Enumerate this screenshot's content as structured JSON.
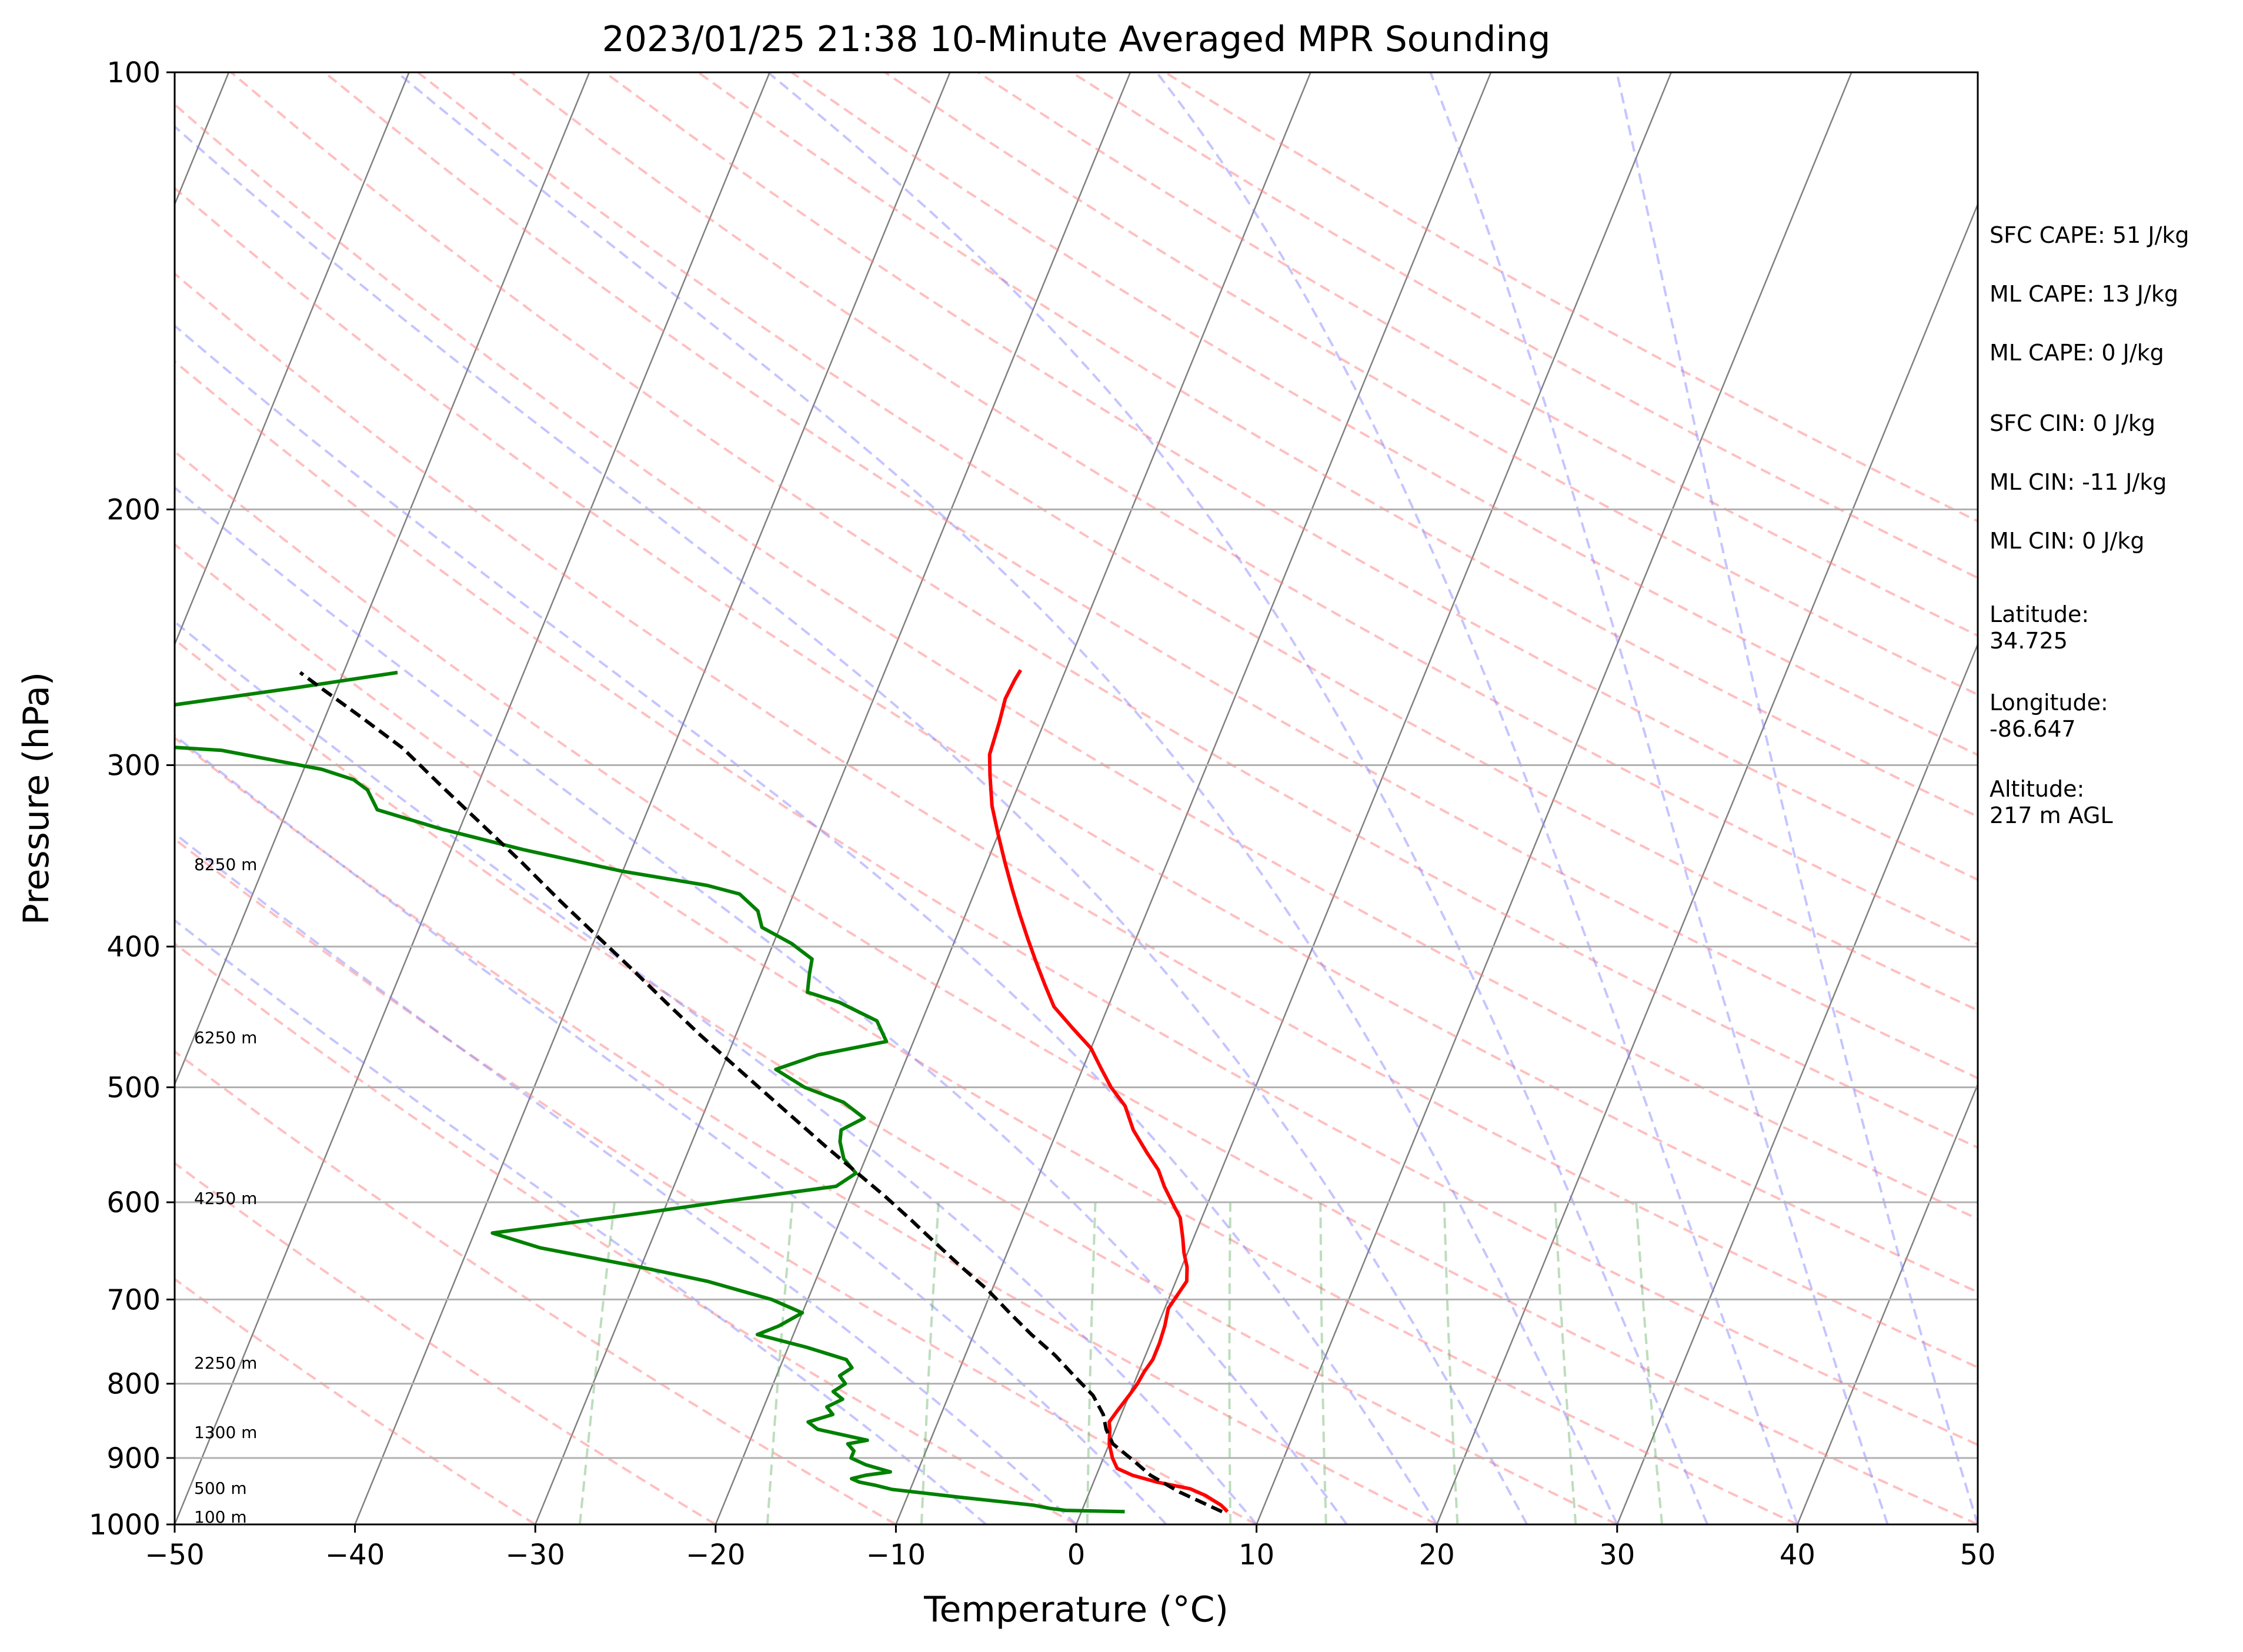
{
  "chart_data": {
    "type": "line",
    "title": "2023/01/25 21:38 10-Minute Averaged MPR Sounding",
    "xlabel": "Temperature (°C)",
    "ylabel": "Pressure (hPa)",
    "xlim": [
      -50,
      50
    ],
    "ylim_pressure_hpa": [
      1000,
      100
    ],
    "y_scale": "log",
    "x_ticks": [
      "−50",
      "−40",
      "−30",
      "−20",
      "−10",
      "0",
      "10",
      "20",
      "30",
      "40",
      "50"
    ],
    "y_ticks": [
      "100",
      "200",
      "300",
      "400",
      "500",
      "600",
      "700",
      "800",
      "900",
      "1000"
    ],
    "grid": true,
    "isotherm_skew": true,
    "series": [
      {
        "role": "temperature",
        "color": "#ff0000",
        "points": [
          [
            8.1,
            980
          ],
          [
            7.6,
            970
          ],
          [
            6.5,
            955
          ],
          [
            5.5,
            945
          ],
          [
            3.5,
            935
          ],
          [
            2.0,
            925
          ],
          [
            1.0,
            915
          ],
          [
            0.5,
            900
          ],
          [
            0.0,
            880
          ],
          [
            -0.3,
            860
          ],
          [
            -0.5,
            850
          ],
          [
            -0.3,
            835
          ],
          [
            0.0,
            815
          ],
          [
            0.2,
            800
          ],
          [
            0.3,
            785
          ],
          [
            0.5,
            770
          ],
          [
            0.5,
            750
          ],
          [
            0.4,
            730
          ],
          [
            0.2,
            710
          ],
          [
            0.4,
            695
          ],
          [
            0.6,
            680
          ],
          [
            0.3,
            665
          ],
          [
            -0.2,
            650
          ],
          [
            -0.6,
            635
          ],
          [
            -1.2,
            615
          ],
          [
            -2.0,
            600
          ],
          [
            -2.8,
            585
          ],
          [
            -3.5,
            570
          ],
          [
            -4.5,
            555
          ],
          [
            -5.8,
            535
          ],
          [
            -6.8,
            515
          ],
          [
            -8.0,
            500
          ],
          [
            -9.0,
            485
          ],
          [
            -10.0,
            470
          ],
          [
            -11.5,
            455
          ],
          [
            -13.0,
            440
          ],
          [
            -14.0,
            425
          ],
          [
            -15.0,
            410
          ],
          [
            -16.0,
            395
          ],
          [
            -17.0,
            380
          ],
          [
            -18.0,
            365
          ],
          [
            -19.0,
            350
          ],
          [
            -20.0,
            335
          ],
          [
            -21.0,
            320
          ],
          [
            -21.8,
            305
          ],
          [
            -22.3,
            295
          ],
          [
            -22.5,
            280
          ],
          [
            -22.7,
            270
          ],
          [
            -22.6,
            262
          ],
          [
            -22.5,
            258
          ]
        ]
      },
      {
        "role": "dewpoint",
        "color": "#008000",
        "points": [
          [
            2.4,
            980
          ],
          [
            -0.9,
            978
          ],
          [
            -1.8,
            975
          ],
          [
            -2.8,
            970
          ],
          [
            -4.5,
            965
          ],
          [
            -7.0,
            958
          ],
          [
            -9.0,
            952
          ],
          [
            -11.0,
            946
          ],
          [
            -12.0,
            940
          ],
          [
            -13.0,
            935
          ],
          [
            -13.5,
            930
          ],
          [
            -12.8,
            925
          ],
          [
            -11.5,
            920
          ],
          [
            -13.0,
            910
          ],
          [
            -14.0,
            900
          ],
          [
            -14.0,
            890
          ],
          [
            -14.5,
            880
          ],
          [
            -13.5,
            875
          ],
          [
            -16.5,
            860
          ],
          [
            -17.2,
            850
          ],
          [
            -16.0,
            840
          ],
          [
            -16.5,
            830
          ],
          [
            -15.8,
            820
          ],
          [
            -16.5,
            810
          ],
          [
            -16.0,
            800
          ],
          [
            -16.5,
            790
          ],
          [
            -16.0,
            780
          ],
          [
            -16.5,
            770
          ],
          [
            -19.0,
            755
          ],
          [
            -22.0,
            740
          ],
          [
            -21.0,
            730
          ],
          [
            -20.0,
            715
          ],
          [
            -22.0,
            700
          ],
          [
            -26.0,
            680
          ],
          [
            -30.0,
            665
          ],
          [
            -36.0,
            645
          ],
          [
            -39.0,
            630
          ],
          [
            -35.0,
            620
          ],
          [
            -31.0,
            610
          ],
          [
            -26.0,
            597
          ],
          [
            -21.0,
            585
          ],
          [
            -20.2,
            573
          ],
          [
            -21.2,
            560
          ],
          [
            -21.8,
            545
          ],
          [
            -22.0,
            535
          ],
          [
            -21.0,
            525
          ],
          [
            -22.5,
            512
          ],
          [
            -25.0,
            500
          ],
          [
            -27.0,
            486
          ],
          [
            -25.0,
            475
          ],
          [
            -21.5,
            465
          ],
          [
            -22.5,
            450
          ],
          [
            -25.0,
            437
          ],
          [
            -27.0,
            430
          ],
          [
            -27.3,
            418
          ],
          [
            -27.5,
            408
          ],
          [
            -29.0,
            398
          ],
          [
            -31.0,
            388
          ],
          [
            -31.6,
            378
          ],
          [
            -33.0,
            368
          ],
          [
            -35.0,
            363
          ],
          [
            -40.0,
            355
          ],
          [
            -46.0,
            343
          ],
          [
            -51.0,
            332
          ],
          [
            -55.0,
            322
          ],
          [
            -56.0,
            312
          ],
          [
            -57.0,
            307
          ],
          [
            -59.0,
            302
          ],
          [
            -65.0,
            293
          ],
          [
            -77.0,
            287
          ],
          [
            -79.0,
            285
          ],
          [
            -62.0,
            265
          ],
          [
            -57.0,
            259
          ]
        ]
      },
      {
        "role": "parcel",
        "color": "#000000",
        "dashed": true,
        "points": [
          [
            7.8,
            980
          ],
          [
            5.0,
            950
          ],
          [
            3.0,
            925
          ],
          [
            1.8,
            905
          ],
          [
            0.2,
            880
          ],
          [
            -0.5,
            860
          ],
          [
            -1.0,
            840
          ],
          [
            -2.0,
            815
          ],
          [
            -3.5,
            790
          ],
          [
            -5.0,
            765
          ],
          [
            -6.8,
            740
          ],
          [
            -8.5,
            715
          ],
          [
            -10.2,
            690
          ],
          [
            -12.2,
            665
          ],
          [
            -14.2,
            640
          ],
          [
            -16.0,
            618
          ],
          [
            -18.0,
            595
          ],
          [
            -20.2,
            572
          ],
          [
            -22.4,
            550
          ],
          [
            -24.6,
            528
          ],
          [
            -27.0,
            505
          ],
          [
            -29.5,
            482
          ],
          [
            -32.0,
            460
          ],
          [
            -34.5,
            438
          ],
          [
            -37.2,
            415
          ],
          [
            -40.0,
            393
          ],
          [
            -42.8,
            372
          ],
          [
            -45.8,
            350
          ],
          [
            -48.8,
            330
          ],
          [
            -52.0,
            310
          ],
          [
            -55.0,
            292
          ],
          [
            -58.0,
            278
          ],
          [
            -61.0,
            265
          ],
          [
            -62.4,
            259
          ]
        ]
      }
    ],
    "height_labels": [
      {
        "label": "100 m",
        "pressure": 988
      },
      {
        "label": "500 m",
        "pressure": 944
      },
      {
        "label": "1300 m",
        "pressure": 864
      },
      {
        "label": "2250 m",
        "pressure": 774
      },
      {
        "label": "4250 m",
        "pressure": 596
      },
      {
        "label": "6250 m",
        "pressure": 462
      },
      {
        "label": "8250 m",
        "pressure": 351
      }
    ],
    "background_lines": {
      "dry_adiabat_color": "#ff7f7f",
      "moist_adiabat_color": "#7f7fff",
      "mixing_ratio_color": "#5aa95a",
      "isotherm_color": "#808080"
    }
  },
  "info_panel": {
    "sfc_cape": "SFC CAPE: 51 J/kg",
    "ml_cape_1": "ML CAPE: 13 J/kg",
    "ml_cape_2": "ML CAPE: 0 J/kg",
    "sfc_cin": "SFC CIN: 0 J/kg",
    "ml_cin_1": "ML CIN: -11 J/kg",
    "ml_cin_2": "ML CIN: 0 J/kg",
    "latitude_label": "Latitude:",
    "latitude_value": "34.725",
    "longitude_label": "Longitude:",
    "longitude_value": "-86.647",
    "altitude_label": "Altitude:",
    "altitude_value": "217 m AGL"
  }
}
